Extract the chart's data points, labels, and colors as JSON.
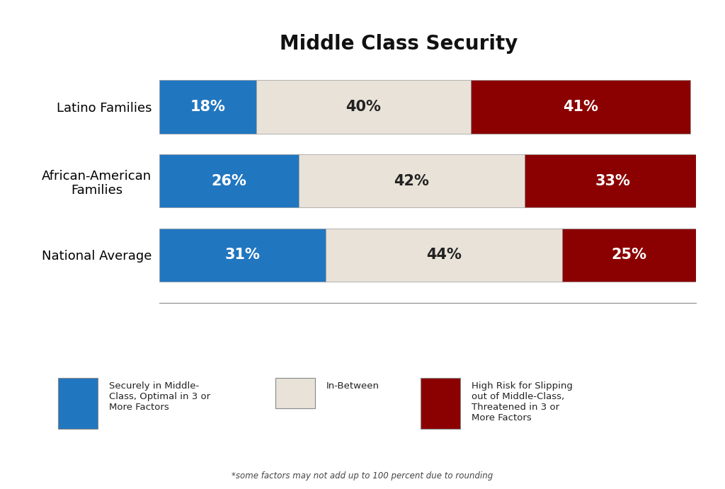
{
  "title": "Middle Class Security",
  "categories": [
    "Latino Families",
    "African-American\nFamilies",
    "National Average"
  ],
  "secure": [
    18,
    26,
    31
  ],
  "inbetween": [
    40,
    42,
    44
  ],
  "highrisk": [
    41,
    33,
    25
  ],
  "secure_color": "#2176C0",
  "inbetween_color": "#E8E2D8",
  "highrisk_color": "#8B0000",
  "bar_edge_color": "#999999",
  "secure_label": "Securely in Middle-\nClass, Optimal in 3 or\nMore Factors",
  "inbetween_label": "In-Between",
  "highrisk_label": "High Risk for Slipping\nout of Middle-Class,\nThreatened in 3 or\nMore Factors",
  "footnote": "*some factors may not add up to 100 percent due to rounding",
  "background_color": "#FFFFFF",
  "bar_height": 0.72,
  "title_fontsize": 20,
  "label_fontsize": 13,
  "pct_fontsize": 15,
  "legend_fontsize": 9.5
}
